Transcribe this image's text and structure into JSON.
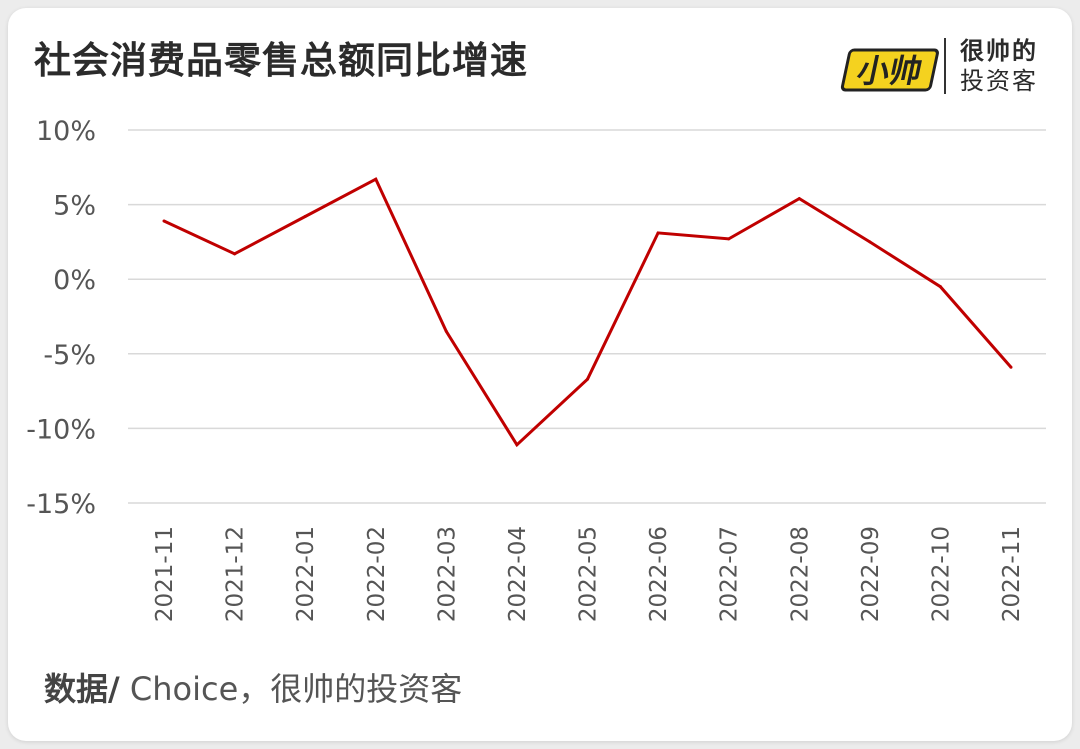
{
  "title": "社会消费品零售总额同比增速",
  "logo": {
    "mark_text": "小帅",
    "line1": "很帅的",
    "line2": "投资客",
    "mark_color": "#f4d21f"
  },
  "source": {
    "label": "数据/",
    "text": " Choice，很帅的投资客"
  },
  "chart_data": {
    "type": "line",
    "x": [
      "2021-11",
      "2021-12",
      "2022-01",
      "2022-02",
      "2022-03",
      "2022-04",
      "2022-05",
      "2022-06",
      "2022-07",
      "2022-08",
      "2022-09",
      "2022-10",
      "2022-11"
    ],
    "series": [
      {
        "values": [
          3.9,
          1.7,
          4.2,
          6.7,
          -3.5,
          -11.1,
          -6.7,
          3.1,
          2.7,
          5.4,
          2.5,
          -0.5,
          -5.9
        ],
        "color": "#c00000"
      }
    ],
    "ylim": [
      -15,
      10
    ],
    "yticks": [
      10,
      5,
      0,
      -5,
      -10,
      -15
    ],
    "ytick_labels": [
      "10%",
      "5%",
      "0%",
      "-5%",
      "-10%",
      "-15%"
    ],
    "grid": true,
    "grid_color": "#d9d9d9"
  }
}
